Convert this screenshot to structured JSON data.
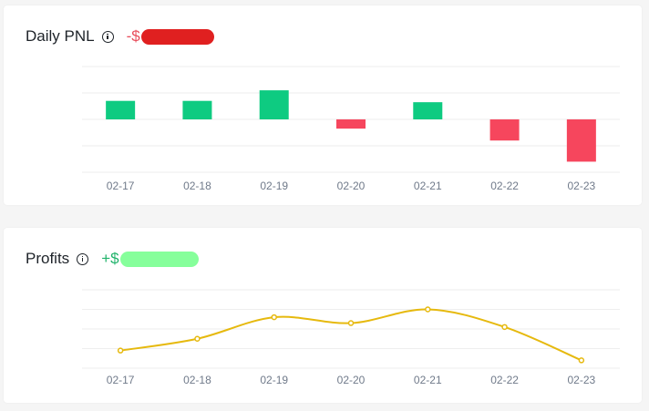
{
  "cards": {
    "pnl": {
      "title": "Daily PNL",
      "value_prefix": "-$"
    },
    "profits": {
      "title": "Profits",
      "value_prefix": "+$"
    }
  },
  "colors": {
    "positive_bar": "#0ecb81",
    "negative_bar": "#f6465d",
    "line": "#e6b90e",
    "grid": "#eeeeee",
    "tick_text": "#707a8a"
  },
  "icons": {
    "info": "info-circle-icon"
  },
  "chart_data": [
    {
      "type": "bar",
      "title": "Daily PNL",
      "categories": [
        "02-17",
        "02-18",
        "02-19",
        "02-20",
        "02-21",
        "02-22",
        "02-23"
      ],
      "values": [
        0.7,
        0.7,
        1.1,
        -0.35,
        0.65,
        -0.8,
        -1.6
      ],
      "ylim": [
        -2,
        2
      ],
      "grid": true,
      "legend": "none"
    },
    {
      "type": "line",
      "title": "Profits",
      "categories": [
        "02-17",
        "02-18",
        "02-19",
        "02-20",
        "02-21",
        "02-22",
        "02-23"
      ],
      "values": [
        0.9,
        1.5,
        2.6,
        2.3,
        3.0,
        2.1,
        0.4
      ],
      "ylim": [
        0,
        4
      ],
      "grid": true,
      "legend": "none"
    }
  ]
}
